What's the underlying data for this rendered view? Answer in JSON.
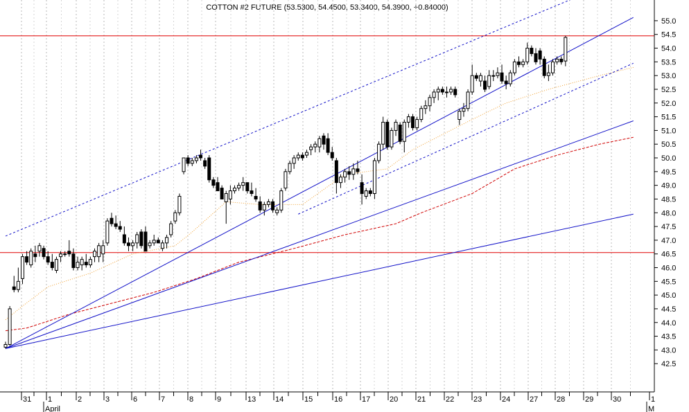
{
  "chart_data": {
    "type": "candlestick",
    "title": "COTTON #2 FUTURE (53.5300, 54.4500, 53.3400, 54.3900, +0.84000)",
    "ylim": [
      42.0,
      55.25
    ],
    "y_ticks": [
      "42.5",
      "43.0",
      "43.5",
      "44.0",
      "44.5",
      "45.0",
      "45.5",
      "46.0",
      "46.5",
      "47.0",
      "47.5",
      "48.0",
      "48.5",
      "49.0",
      "49.5",
      "50.0",
      "50.5",
      "51.0",
      "51.5",
      "52.0",
      "52.5",
      "53.0",
      "53.5",
      "54.0",
      "54.5",
      "55.0"
    ],
    "x_tick_labels": [
      "31",
      "1",
      "2",
      "3",
      "6",
      "7",
      "8",
      "9",
      "13",
      "14",
      "15",
      "16",
      "17",
      "20",
      "21",
      "22",
      "23",
      "24",
      "27",
      "28",
      "29",
      "30",
      "1"
    ],
    "month_labels": [
      "April",
      "M"
    ],
    "grid": "vertical dotted",
    "candles": [
      [
        43.1,
        43.3,
        43.05,
        43.2
      ],
      [
        43.2,
        44.6,
        43.15,
        44.5
      ],
      [
        45.3,
        45.7,
        45.1,
        45.2
      ],
      [
        45.2,
        46.0,
        45.1,
        45.5
      ],
      [
        45.6,
        46.5,
        45.4,
        46.4
      ],
      [
        46.4,
        46.6,
        46.1,
        46.2
      ],
      [
        46.1,
        46.7,
        46.0,
        46.6
      ],
      [
        46.5,
        46.8,
        46.2,
        46.4
      ],
      [
        46.6,
        46.9,
        46.4,
        46.8
      ],
      [
        46.7,
        46.8,
        46.3,
        46.4
      ],
      [
        46.4,
        46.6,
        46.1,
        46.2
      ],
      [
        46.2,
        46.5,
        45.9,
        46.0
      ],
      [
        45.9,
        46.4,
        45.8,
        46.3
      ],
      [
        46.4,
        46.6,
        46.2,
        46.5
      ],
      [
        46.5,
        46.6,
        46.4,
        46.5
      ],
      [
        46.6,
        47.0,
        46.4,
        46.5
      ],
      [
        46.5,
        46.7,
        45.9,
        46.0
      ],
      [
        46.0,
        46.4,
        45.9,
        46.2
      ],
      [
        46.1,
        46.4,
        45.9,
        46.3
      ],
      [
        46.2,
        46.5,
        46.0,
        46.1
      ],
      [
        46.1,
        46.4,
        46.0,
        46.3
      ],
      [
        46.4,
        46.7,
        46.2,
        46.6
      ],
      [
        46.4,
        46.9,
        46.2,
        46.8
      ],
      [
        46.5,
        47.0,
        46.2,
        46.8
      ],
      [
        46.9,
        47.8,
        46.8,
        47.7
      ],
      [
        47.8,
        48.0,
        47.5,
        47.6
      ],
      [
        47.6,
        47.9,
        47.4,
        47.5
      ],
      [
        47.5,
        47.7,
        47.3,
        47.4
      ],
      [
        47.2,
        47.5,
        46.8,
        46.9
      ],
      [
        46.9,
        47.1,
        46.6,
        46.8
      ],
      [
        46.8,
        47.0,
        46.6,
        46.9
      ],
      [
        46.9,
        47.3,
        46.7,
        47.2
      ],
      [
        47.3,
        47.4,
        46.7,
        46.8
      ],
      [
        47.3,
        47.5,
        46.6,
        46.6
      ],
      [
        46.8,
        47.0,
        46.7,
        46.9
      ],
      [
        46.9,
        47.2,
        46.8,
        47.0
      ],
      [
        47.0,
        47.1,
        46.9,
        46.9
      ],
      [
        46.7,
        47.0,
        46.6,
        46.9
      ],
      [
        46.9,
        47.2,
        46.7,
        47.1
      ],
      [
        47.2,
        47.7,
        47.1,
        47.6
      ],
      [
        47.7,
        48.1,
        47.6,
        48.0
      ],
      [
        48.0,
        48.7,
        47.9,
        48.6
      ],
      [
        49.5,
        50.0,
        49.4,
        50.0
      ],
      [
        50.0,
        50.1,
        49.7,
        49.8
      ],
      [
        49.8,
        50.0,
        49.7,
        49.9
      ],
      [
        49.9,
        50.1,
        49.8,
        50.0
      ],
      [
        50.1,
        50.3,
        49.9,
        50.0
      ],
      [
        49.9,
        50.0,
        49.6,
        49.7
      ],
      [
        50.0,
        50.1,
        49.1,
        49.2
      ],
      [
        49.2,
        49.3,
        48.9,
        49.0
      ],
      [
        49.1,
        49.3,
        48.8,
        48.8
      ],
      [
        48.9,
        49.0,
        48.5,
        48.5
      ],
      [
        48.4,
        48.8,
        47.6,
        48.7
      ],
      [
        48.5,
        49.0,
        48.3,
        48.8
      ],
      [
        48.8,
        49.0,
        48.7,
        48.9
      ],
      [
        48.9,
        49.1,
        48.8,
        49.0
      ],
      [
        49.0,
        49.3,
        48.8,
        49.1
      ],
      [
        49.1,
        49.1,
        48.7,
        48.8
      ],
      [
        48.8,
        49.1,
        48.6,
        48.7
      ],
      [
        48.6,
        48.9,
        48.4,
        48.5
      ],
      [
        48.4,
        48.6,
        48.0,
        48.1
      ],
      [
        48.1,
        48.4,
        47.9,
        48.3
      ],
      [
        48.3,
        48.5,
        48.2,
        48.4
      ],
      [
        48.4,
        48.5,
        48.0,
        48.1
      ],
      [
        48.0,
        48.2,
        47.9,
        48.1
      ],
      [
        48.1,
        48.9,
        48.0,
        48.8
      ],
      [
        48.9,
        49.6,
        48.8,
        49.5
      ],
      [
        49.5,
        49.9,
        49.4,
        49.8
      ],
      [
        49.8,
        50.1,
        49.6,
        50.0
      ],
      [
        50.0,
        50.2,
        49.9,
        50.1
      ],
      [
        50.1,
        50.2,
        49.9,
        50.0
      ],
      [
        50.1,
        50.3,
        50.0,
        50.2
      ],
      [
        50.3,
        50.5,
        50.1,
        50.4
      ],
      [
        50.4,
        50.6,
        50.2,
        50.5
      ],
      [
        50.4,
        50.8,
        50.2,
        50.7
      ],
      [
        50.8,
        50.9,
        50.3,
        50.5
      ],
      [
        50.7,
        50.9,
        50.1,
        50.2
      ],
      [
        50.2,
        50.4,
        49.9,
        50.0
      ],
      [
        49.9,
        50.0,
        48.7,
        49.1
      ],
      [
        49.1,
        49.4,
        48.9,
        49.3
      ],
      [
        49.3,
        49.6,
        49.1,
        49.5
      ],
      [
        49.5,
        49.7,
        49.2,
        49.4
      ],
      [
        49.4,
        49.8,
        49.2,
        49.6
      ],
      [
        49.6,
        49.9,
        49.4,
        49.5
      ],
      [
        49.1,
        49.4,
        48.3,
        48.7
      ],
      [
        48.6,
        48.9,
        48.5,
        48.8
      ],
      [
        48.8,
        48.9,
        48.6,
        48.7
      ],
      [
        48.7,
        50.0,
        48.5,
        49.9
      ],
      [
        49.9,
        50.6,
        49.8,
        50.5
      ],
      [
        50.5,
        51.5,
        50.3,
        51.3
      ],
      [
        51.3,
        51.4,
        50.3,
        50.4
      ],
      [
        50.4,
        51.1,
        50.3,
        51.0
      ],
      [
        51.0,
        51.4,
        50.8,
        51.3
      ],
      [
        51.2,
        51.3,
        50.5,
        50.6
      ],
      [
        50.6,
        51.4,
        50.2,
        51.3
      ],
      [
        51.3,
        51.6,
        51.1,
        51.5
      ],
      [
        51.5,
        51.6,
        51.0,
        51.1
      ],
      [
        51.1,
        51.5,
        51.0,
        51.4
      ],
      [
        51.4,
        51.9,
        51.3,
        51.8
      ],
      [
        51.8,
        52.1,
        51.6,
        51.9
      ],
      [
        51.9,
        52.3,
        51.7,
        52.2
      ],
      [
        52.2,
        52.5,
        52.0,
        52.4
      ],
      [
        52.4,
        52.6,
        52.1,
        52.5
      ],
      [
        52.5,
        52.6,
        52.3,
        52.4
      ],
      [
        52.4,
        52.6,
        52.2,
        52.4
      ],
      [
        52.4,
        52.6,
        52.3,
        52.5
      ],
      [
        52.5,
        52.6,
        52.2,
        52.3
      ],
      [
        51.4,
        51.8,
        51.2,
        51.7
      ],
      [
        51.7,
        52.0,
        51.5,
        51.8
      ],
      [
        51.8,
        52.5,
        51.7,
        52.4
      ],
      [
        52.4,
        53.4,
        52.3,
        53.0
      ],
      [
        53.0,
        53.1,
        52.8,
        52.9
      ],
      [
        52.8,
        53.1,
        52.6,
        53.0
      ],
      [
        52.8,
        53.0,
        52.4,
        52.5
      ],
      [
        52.6,
        53.2,
        52.5,
        53.0
      ],
      [
        53.0,
        53.2,
        52.8,
        53.0
      ],
      [
        53.0,
        53.3,
        52.9,
        53.1
      ],
      [
        53.1,
        53.4,
        52.7,
        52.8
      ],
      [
        52.8,
        53.0,
        52.5,
        52.7
      ],
      [
        52.7,
        53.2,
        52.6,
        53.1
      ],
      [
        53.1,
        53.6,
        53.0,
        53.5
      ],
      [
        53.5,
        53.7,
        53.3,
        53.4
      ],
      [
        53.4,
        53.6,
        53.3,
        53.5
      ],
      [
        53.5,
        54.2,
        53.4,
        54.0
      ],
      [
        54.0,
        54.1,
        53.7,
        53.8
      ],
      [
        53.8,
        54.0,
        53.4,
        53.5
      ],
      [
        53.9,
        54.0,
        53.4,
        53.6
      ],
      [
        53.6,
        53.7,
        52.9,
        53.0
      ],
      [
        53.0,
        53.4,
        52.8,
        53.1
      ],
      [
        53.1,
        53.6,
        53.0,
        53.5
      ],
      [
        53.5,
        53.7,
        53.4,
        53.6
      ],
      [
        53.6,
        53.7,
        53.4,
        53.5
      ],
      [
        53.53,
        54.45,
        53.34,
        54.39
      ]
    ],
    "horizontal_lines": [
      54.45,
      46.55
    ],
    "trendlines": [
      {
        "style": "solid",
        "from": [
          0,
          43.05
        ],
        "to": [
          148,
          55.12
        ]
      },
      {
        "style": "solid",
        "from": [
          0,
          43.05
        ],
        "to": [
          148,
          51.35
        ]
      },
      {
        "style": "solid",
        "from": [
          0,
          43.05
        ],
        "to": [
          148,
          47.95
        ]
      },
      {
        "style": "dotted",
        "from": [
          0,
          47.15
        ],
        "to": [
          136,
          55.95
        ]
      },
      {
        "style": "dotted",
        "from": [
          69,
          47.95
        ],
        "to": [
          148,
          53.45
        ]
      }
    ],
    "moving_averages": [
      {
        "style": "dotted",
        "color": "#f0a030",
        "values": [
          [
            0,
            44.1
          ],
          [
            4,
            44.6
          ],
          [
            10,
            45.3
          ],
          [
            20,
            45.8
          ],
          [
            30,
            46.5
          ],
          [
            40,
            46.8
          ],
          [
            44,
            47.3
          ],
          [
            52,
            48.4
          ],
          [
            60,
            48.3
          ],
          [
            70,
            48.3
          ],
          [
            80,
            49.4
          ],
          [
            90,
            49.6
          ],
          [
            96,
            50.3
          ],
          [
            110,
            51.4
          ],
          [
            118,
            52.0
          ],
          [
            128,
            52.5
          ],
          [
            140,
            53.0
          ],
          [
            148,
            53.3
          ]
        ]
      },
      {
        "style": "dashed",
        "color": "#d00000",
        "values": [
          [
            0,
            43.7
          ],
          [
            5,
            43.8
          ],
          [
            15,
            44.3
          ],
          [
            25,
            44.7
          ],
          [
            35,
            45.1
          ],
          [
            45,
            45.6
          ],
          [
            55,
            46.2
          ],
          [
            68,
            46.7
          ],
          [
            80,
            47.2
          ],
          [
            92,
            47.6
          ],
          [
            98,
            48.0
          ],
          [
            110,
            48.7
          ],
          [
            120,
            49.6
          ],
          [
            130,
            50.1
          ],
          [
            140,
            50.5
          ],
          [
            148,
            50.75
          ]
        ]
      }
    ]
  }
}
